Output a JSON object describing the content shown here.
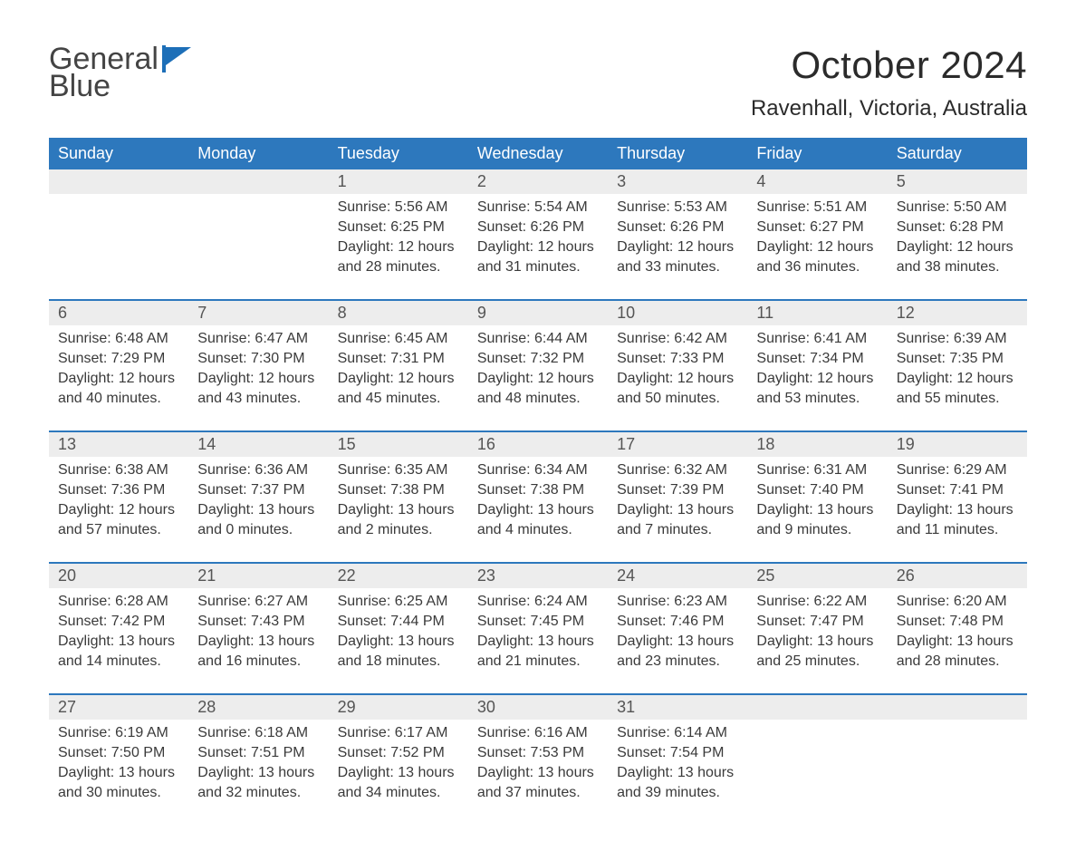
{
  "logo": {
    "line1": "General",
    "line2": "Blue"
  },
  "title": {
    "month": "October 2024",
    "location": "Ravenhall, Victoria, Australia"
  },
  "colors": {
    "accent": "#2d78bd",
    "header_bg": "#2d78bd",
    "daynum_bg": "#ededed",
    "text": "#3a3a3a",
    "page_bg": "#ffffff"
  },
  "fonts": {
    "month_size": 42,
    "location_size": 24,
    "th_size": 18,
    "body_size": 16
  },
  "day_names": [
    "Sunday",
    "Monday",
    "Tuesday",
    "Wednesday",
    "Thursday",
    "Friday",
    "Saturday"
  ],
  "weeks": [
    [
      null,
      null,
      {
        "n": "1",
        "sunrise": "5:56 AM",
        "sunset": "6:25 PM",
        "daylight": "12 hours and 28 minutes."
      },
      {
        "n": "2",
        "sunrise": "5:54 AM",
        "sunset": "6:26 PM",
        "daylight": "12 hours and 31 minutes."
      },
      {
        "n": "3",
        "sunrise": "5:53 AM",
        "sunset": "6:26 PM",
        "daylight": "12 hours and 33 minutes."
      },
      {
        "n": "4",
        "sunrise": "5:51 AM",
        "sunset": "6:27 PM",
        "daylight": "12 hours and 36 minutes."
      },
      {
        "n": "5",
        "sunrise": "5:50 AM",
        "sunset": "6:28 PM",
        "daylight": "12 hours and 38 minutes."
      }
    ],
    [
      {
        "n": "6",
        "sunrise": "6:48 AM",
        "sunset": "7:29 PM",
        "daylight": "12 hours and 40 minutes."
      },
      {
        "n": "7",
        "sunrise": "6:47 AM",
        "sunset": "7:30 PM",
        "daylight": "12 hours and 43 minutes."
      },
      {
        "n": "8",
        "sunrise": "6:45 AM",
        "sunset": "7:31 PM",
        "daylight": "12 hours and 45 minutes."
      },
      {
        "n": "9",
        "sunrise": "6:44 AM",
        "sunset": "7:32 PM",
        "daylight": "12 hours and 48 minutes."
      },
      {
        "n": "10",
        "sunrise": "6:42 AM",
        "sunset": "7:33 PM",
        "daylight": "12 hours and 50 minutes."
      },
      {
        "n": "11",
        "sunrise": "6:41 AM",
        "sunset": "7:34 PM",
        "daylight": "12 hours and 53 minutes."
      },
      {
        "n": "12",
        "sunrise": "6:39 AM",
        "sunset": "7:35 PM",
        "daylight": "12 hours and 55 minutes."
      }
    ],
    [
      {
        "n": "13",
        "sunrise": "6:38 AM",
        "sunset": "7:36 PM",
        "daylight": "12 hours and 57 minutes."
      },
      {
        "n": "14",
        "sunrise": "6:36 AM",
        "sunset": "7:37 PM",
        "daylight": "13 hours and 0 minutes."
      },
      {
        "n": "15",
        "sunrise": "6:35 AM",
        "sunset": "7:38 PM",
        "daylight": "13 hours and 2 minutes."
      },
      {
        "n": "16",
        "sunrise": "6:34 AM",
        "sunset": "7:38 PM",
        "daylight": "13 hours and 4 minutes."
      },
      {
        "n": "17",
        "sunrise": "6:32 AM",
        "sunset": "7:39 PM",
        "daylight": "13 hours and 7 minutes."
      },
      {
        "n": "18",
        "sunrise": "6:31 AM",
        "sunset": "7:40 PM",
        "daylight": "13 hours and 9 minutes."
      },
      {
        "n": "19",
        "sunrise": "6:29 AM",
        "sunset": "7:41 PM",
        "daylight": "13 hours and 11 minutes."
      }
    ],
    [
      {
        "n": "20",
        "sunrise": "6:28 AM",
        "sunset": "7:42 PM",
        "daylight": "13 hours and 14 minutes."
      },
      {
        "n": "21",
        "sunrise": "6:27 AM",
        "sunset": "7:43 PM",
        "daylight": "13 hours and 16 minutes."
      },
      {
        "n": "22",
        "sunrise": "6:25 AM",
        "sunset": "7:44 PM",
        "daylight": "13 hours and 18 minutes."
      },
      {
        "n": "23",
        "sunrise": "6:24 AM",
        "sunset": "7:45 PM",
        "daylight": "13 hours and 21 minutes."
      },
      {
        "n": "24",
        "sunrise": "6:23 AM",
        "sunset": "7:46 PM",
        "daylight": "13 hours and 23 minutes."
      },
      {
        "n": "25",
        "sunrise": "6:22 AM",
        "sunset": "7:47 PM",
        "daylight": "13 hours and 25 minutes."
      },
      {
        "n": "26",
        "sunrise": "6:20 AM",
        "sunset": "7:48 PM",
        "daylight": "13 hours and 28 minutes."
      }
    ],
    [
      {
        "n": "27",
        "sunrise": "6:19 AM",
        "sunset": "7:50 PM",
        "daylight": "13 hours and 30 minutes."
      },
      {
        "n": "28",
        "sunrise": "6:18 AM",
        "sunset": "7:51 PM",
        "daylight": "13 hours and 32 minutes."
      },
      {
        "n": "29",
        "sunrise": "6:17 AM",
        "sunset": "7:52 PM",
        "daylight": "13 hours and 34 minutes."
      },
      {
        "n": "30",
        "sunrise": "6:16 AM",
        "sunset": "7:53 PM",
        "daylight": "13 hours and 37 minutes."
      },
      {
        "n": "31",
        "sunrise": "6:14 AM",
        "sunset": "7:54 PM",
        "daylight": "13 hours and 39 minutes."
      },
      null,
      null
    ]
  ],
  "labels": {
    "sunrise": "Sunrise: ",
    "sunset": "Sunset: ",
    "daylight": "Daylight: "
  }
}
